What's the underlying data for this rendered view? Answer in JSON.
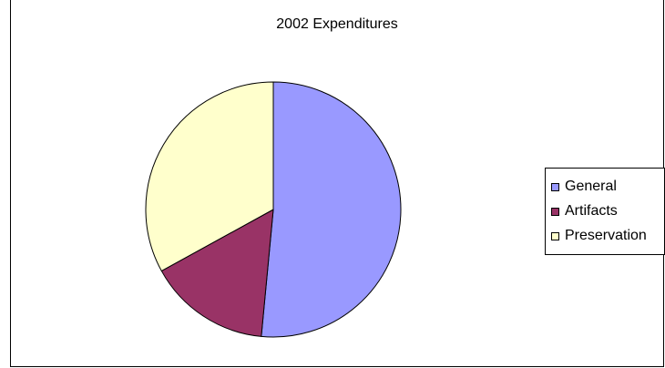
{
  "chart_data": {
    "type": "pie",
    "title": "2002 Expenditures",
    "categories": [
      "General",
      "Artifacts",
      "Preservation"
    ],
    "values": [
      51.5,
      15.5,
      33.0
    ],
    "colors": [
      "#9999ff",
      "#993366",
      "#ffffcc"
    ],
    "legend": "right",
    "start_angle_deg": 0,
    "direction": "clockwise"
  }
}
